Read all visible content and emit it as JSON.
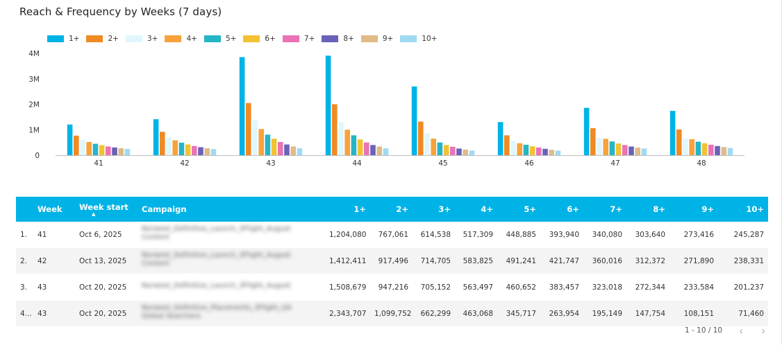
{
  "title": "Reach & Frequency by Weeks (7 days)",
  "chart_data": {
    "type": "bar",
    "title": "Reach & Frequency by Weeks (7 days)",
    "categories": [
      "41",
      "42",
      "43",
      "44",
      "45",
      "46",
      "47",
      "48"
    ],
    "y_ticks": [
      "0",
      "1M",
      "2M",
      "3M",
      "4M"
    ],
    "ylim": [
      0,
      4000000
    ],
    "legend_position": "top-left",
    "grid": false,
    "series": [
      {
        "name": "1+",
        "color": "#00b3e6",
        "values": [
          1204080,
          1412411,
          3852386,
          3909427,
          2700000,
          1300000,
          1860000,
          1740000
        ]
      },
      {
        "name": "2+",
        "color": "#f08a24",
        "values": [
          767061,
          917496,
          2046968,
          2000000,
          1320000,
          780000,
          1060000,
          1010000
        ]
      },
      {
        "name": "3+",
        "color": "#dff6fd",
        "values": [
          614538,
          714705,
          1367451,
          1300000,
          860000,
          560000,
          690000,
          660000
        ]
      },
      {
        "name": "4+",
        "color": "#f7a23b",
        "values": [
          517309,
          583825,
          1026565,
          1000000,
          650000,
          470000,
          640000,
          630000
        ]
      },
      {
        "name": "5+",
        "color": "#26b5c5",
        "values": [
          448885,
          491241,
          806369,
          780000,
          500000,
          410000,
          540000,
          530000
        ]
      },
      {
        "name": "6+",
        "color": "#f2c233",
        "values": [
          393940,
          421747,
          647411,
          620000,
          400000,
          350000,
          460000,
          470000
        ]
      },
      {
        "name": "7+",
        "color": "#ea73b6",
        "values": [
          340080,
          360016,
          518167,
          500000,
          330000,
          300000,
          400000,
          410000
        ]
      },
      {
        "name": "8+",
        "color": "#6a62b8",
        "values": [
          303640,
          312372,
          420098,
          400000,
          260000,
          250000,
          340000,
          360000
        ]
      },
      {
        "name": "9+",
        "color": "#e0bb87",
        "values": [
          273416,
          271890,
          341735,
          340000,
          220000,
          210000,
          300000,
          320000
        ]
      },
      {
        "name": "10+",
        "color": "#9fdaf3",
        "values": [
          245287,
          238331,
          272697,
          270000,
          180000,
          180000,
          260000,
          280000
        ]
      }
    ]
  },
  "table": {
    "headers": {
      "week": "Week",
      "week_start": "Week start",
      "campaign": "Campaign",
      "f1": "1+",
      "f2": "2+",
      "f3": "3+",
      "f4": "4+",
      "f5": "5+",
      "f6": "6+",
      "f7": "7+",
      "f8": "8+",
      "f9": "9+",
      "f10": "10+"
    },
    "sort_indicator": "▲",
    "rows": [
      {
        "idx": "1.",
        "week": "41",
        "week_start": "Oct 6, 2025",
        "campaign": "Norwest_Definitive_Launch_3Flight_August Content",
        "f1": "1,204,080",
        "f2": "767,061",
        "f3": "614,538",
        "f4": "517,309",
        "f5": "448,885",
        "f6": "393,940",
        "f7": "340,080",
        "f8": "303,640",
        "f9": "273,416",
        "f10": "245,287"
      },
      {
        "idx": "2.",
        "week": "42",
        "week_start": "Oct 13, 2025",
        "campaign": "Norwest_Definitive_Launch_3Flight_August Content",
        "f1": "1,412,411",
        "f2": "917,496",
        "f3": "714,705",
        "f4": "583,825",
        "f5": "491,241",
        "f6": "421,747",
        "f7": "360,016",
        "f8": "312,372",
        "f9": "271,890",
        "f10": "238,331"
      },
      {
        "idx": "3.",
        "week": "43",
        "week_start": "Oct 20, 2025",
        "campaign": "Norwest_Definitive_Launch_3Flight_August",
        "f1": "1,508,679",
        "f2": "947,216",
        "f3": "705,152",
        "f4": "563,497",
        "f5": "460,652",
        "f6": "383,457",
        "f7": "323,018",
        "f8": "272,344",
        "f9": "233,584",
        "f10": "201,237"
      },
      {
        "idx": "4...",
        "week": "43",
        "week_start": "Oct 20, 2025",
        "campaign": "Norwest_Definitive_Placements_3Flight_Q4 Global Searchers",
        "f1": "2,343,707",
        "f2": "1,099,752",
        "f3": "662,299",
        "f4": "463,068",
        "f5": "345,717",
        "f6": "263,954",
        "f7": "195,149",
        "f8": "147,754",
        "f9": "108,151",
        "f10": "71,460"
      }
    ]
  },
  "pager": {
    "range_text": "1 - 10 / 10",
    "prev_icon": "chevron-left-icon",
    "next_icon": "chevron-right-icon",
    "prev_glyph": "‹",
    "next_glyph": "›"
  }
}
